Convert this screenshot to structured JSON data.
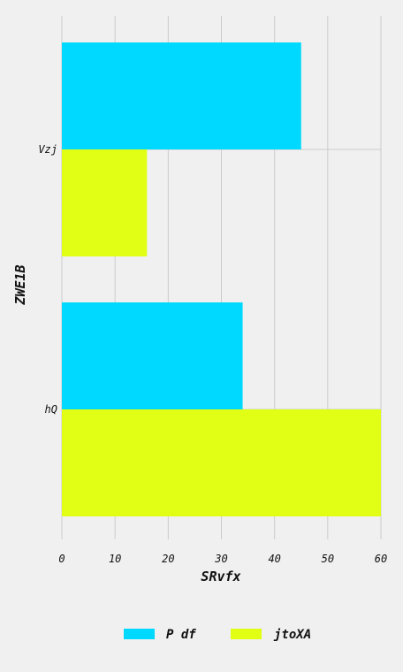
{
  "chart_data": {
    "type": "bar",
    "orientation": "horizontal",
    "categories": [
      "Vzj",
      "hQ"
    ],
    "series": [
      {
        "name": "P df",
        "values": [
          45,
          34
        ],
        "color": "#00d9ff"
      },
      {
        "name": "jtoXA",
        "values": [
          16,
          60
        ],
        "color": "#e1ff14"
      }
    ],
    "title": "",
    "xlabel": "SRvfx",
    "ylabel": "ZWE1B",
    "xlim": [
      0,
      60
    ],
    "xticks": [
      0,
      10,
      20,
      30,
      40,
      50,
      60
    ],
    "grid": true,
    "legend_position": "bottom"
  },
  "colors": {
    "background": "#f0f0f0",
    "grid": "#cbcbcb",
    "text": "#111111"
  }
}
